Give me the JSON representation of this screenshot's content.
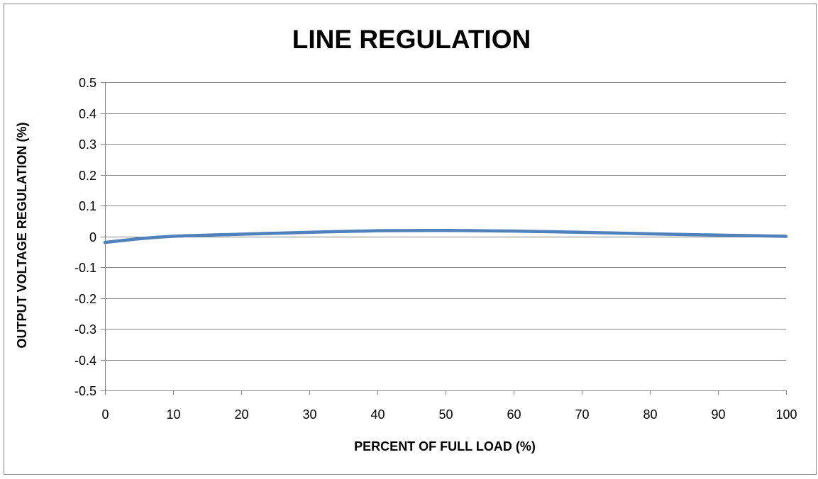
{
  "chart_data": {
    "type": "line",
    "title": "LINE REGULATION",
    "xlabel": "PERCENT OF FULL LOAD (%)",
    "ylabel": "OUTPUT VOLTAGE REGULATION (%)",
    "xlim": [
      0,
      100
    ],
    "ylim": [
      -0.5,
      0.5
    ],
    "x_ticks": [
      "0",
      "10",
      "20",
      "30",
      "40",
      "50",
      "60",
      "70",
      "80",
      "90",
      "100"
    ],
    "y_ticks": [
      "0.5",
      "0.4",
      "0.3",
      "0.2",
      "0.1",
      "0",
      "-0.1",
      "-0.2",
      "-0.3",
      "-0.4",
      "-0.5"
    ],
    "grid": "horizontal",
    "legend": "none",
    "series": [
      {
        "color": "#4f81bd",
        "x": [
          0,
          5,
          10,
          20,
          30,
          40,
          50,
          60,
          70,
          80,
          90,
          100
        ],
        "y": [
          -0.02,
          -0.008,
          0,
          0.007,
          0.013,
          0.018,
          0.019,
          0.017,
          0.013,
          0.008,
          0.004,
          0
        ]
      }
    ]
  }
}
